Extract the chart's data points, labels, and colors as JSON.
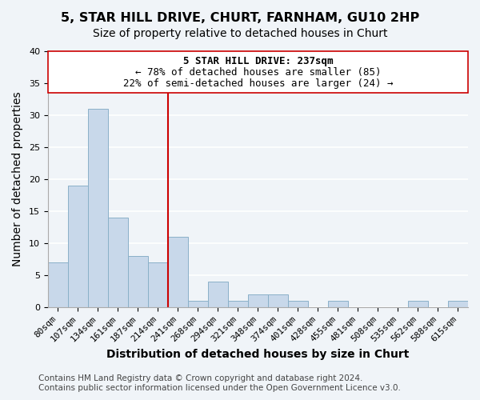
{
  "title": "5, STAR HILL DRIVE, CHURT, FARNHAM, GU10 2HP",
  "subtitle": "Size of property relative to detached houses in Churt",
  "xlabel": "Distribution of detached houses by size in Churt",
  "ylabel": "Number of detached properties",
  "bar_color": "#c8d8ea",
  "bar_edge_color": "#8ab0c8",
  "categories": [
    "80sqm",
    "107sqm",
    "134sqm",
    "161sqm",
    "187sqm",
    "214sqm",
    "241sqm",
    "268sqm",
    "294sqm",
    "321sqm",
    "348sqm",
    "374sqm",
    "401sqm",
    "428sqm",
    "455sqm",
    "481sqm",
    "508sqm",
    "535sqm",
    "562sqm",
    "588sqm",
    "615sqm"
  ],
  "values": [
    7,
    19,
    31,
    14,
    8,
    7,
    11,
    1,
    4,
    1,
    2,
    2,
    1,
    0,
    1,
    0,
    0,
    0,
    1,
    0,
    1
  ],
  "vline_index": 6,
  "vline_color": "#cc0000",
  "ylim": [
    0,
    40
  ],
  "yticks": [
    0,
    5,
    10,
    15,
    20,
    25,
    30,
    35,
    40
  ],
  "annotation_line1": "5 STAR HILL DRIVE: 237sqm",
  "annotation_line2": "← 78% of detached houses are smaller (85)",
  "annotation_line3": "22% of semi-detached houses are larger (24) →",
  "footer_line1": "Contains HM Land Registry data © Crown copyright and database right 2024.",
  "footer_line2": "Contains public sector information licensed under the Open Government Licence v3.0.",
  "background_color": "#f0f4f8",
  "grid_color": "#ffffff",
  "title_fontsize": 11.5,
  "subtitle_fontsize": 10,
  "axis_label_fontsize": 10,
  "tick_fontsize": 8,
  "annotation_fontsize": 9,
  "footer_fontsize": 7.5
}
